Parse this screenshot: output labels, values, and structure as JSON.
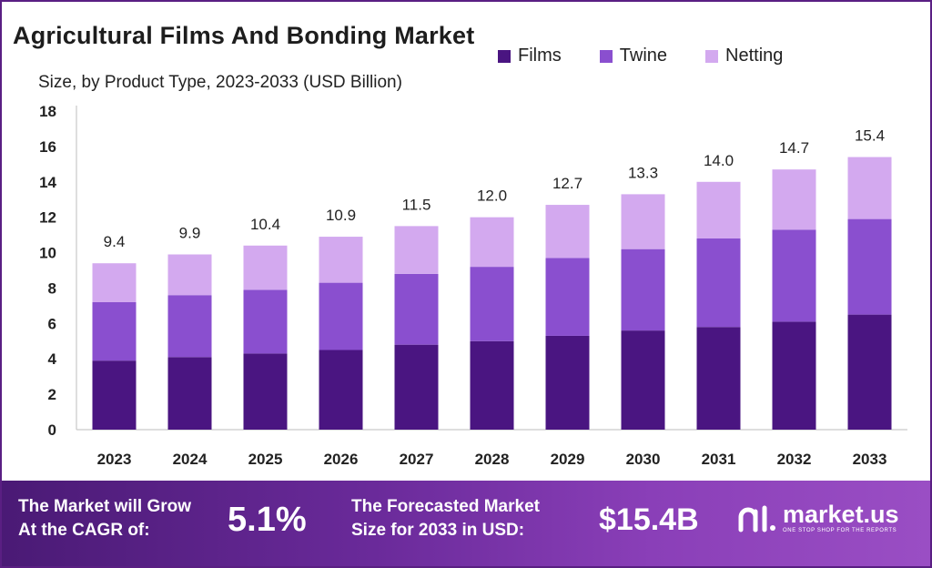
{
  "title": "Agricultural Films And Bonding Market",
  "subtitle": "Size, by Product Type, 2023-2033 (USD Billion)",
  "legend": [
    {
      "label": "Films",
      "color": "#4a1581"
    },
    {
      "label": "Twine",
      "color": "#8a4fcf"
    },
    {
      "label": "Netting",
      "color": "#d3a9ef"
    }
  ],
  "chart_data": {
    "type": "bar",
    "stacked": true,
    "categories": [
      "2023",
      "2024",
      "2025",
      "2026",
      "2027",
      "2028",
      "2029",
      "2030",
      "2031",
      "2032",
      "2033"
    ],
    "series": [
      {
        "name": "Films",
        "color": "#4a1581",
        "values": [
          3.9,
          4.1,
          4.3,
          4.5,
          4.8,
          5.0,
          5.3,
          5.6,
          5.8,
          6.1,
          6.5
        ]
      },
      {
        "name": "Twine",
        "color": "#8a4fcf",
        "values": [
          3.3,
          3.5,
          3.6,
          3.8,
          4.0,
          4.2,
          4.4,
          4.6,
          5.0,
          5.2,
          5.4
        ]
      },
      {
        "name": "Netting",
        "color": "#d3a9ef",
        "values": [
          2.2,
          2.3,
          2.5,
          2.6,
          2.7,
          2.8,
          3.0,
          3.1,
          3.2,
          3.4,
          3.5
        ]
      }
    ],
    "totals": [
      "9.4",
      "9.9",
      "10.4",
      "10.9",
      "11.5",
      "12.0",
      "12.7",
      "13.3",
      "14.0",
      "14.7",
      "15.4"
    ],
    "yticks": [
      0,
      2,
      4,
      6,
      8,
      10,
      12,
      14,
      16,
      18
    ],
    "ylim": [
      0,
      18
    ],
    "grid": false,
    "legend_position": "top-right"
  },
  "footer": {
    "cagr_text_line1": "The Market will Grow",
    "cagr_text_line2": "At the CAGR of:",
    "cagr_value": "5.1%",
    "forecast_text_line1": "The Forecasted Market",
    "forecast_text_line2": "Size for 2033 in USD:",
    "forecast_value": "$15.4B",
    "brand_name": "market.us",
    "brand_tagline": "ONE STOP SHOP FOR THE REPORTS",
    "brand_icon": "market-us-logo-icon"
  }
}
